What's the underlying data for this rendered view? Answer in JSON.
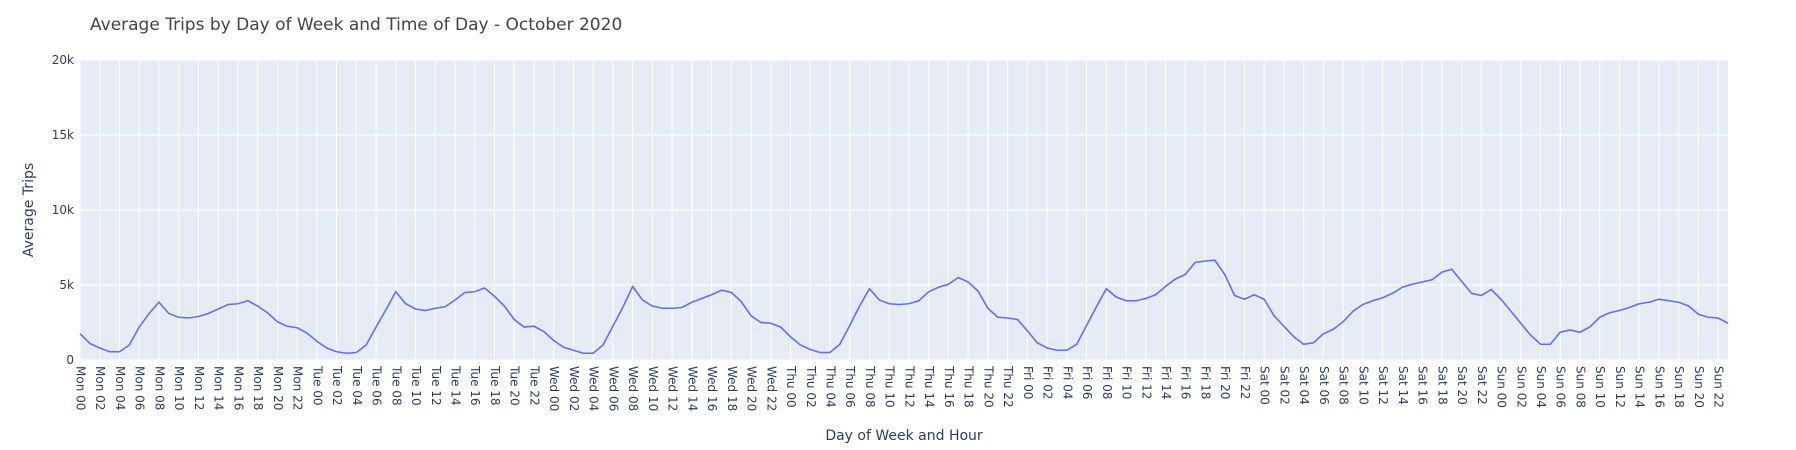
{
  "chart_data": {
    "type": "line",
    "title": "Average Trips by Day of Week and Time of Day - October 2020",
    "xlabel": "Day of Week and Hour",
    "ylabel": "Average Trips",
    "ylim": [
      0,
      20000
    ],
    "yticks": [
      0,
      5000,
      10000,
      15000,
      20000
    ],
    "yticklabels": [
      "0",
      "5k",
      "10k",
      "15k",
      "20k"
    ],
    "grid": true,
    "colors": {
      "line": "#636efa",
      "plot_bg": "#e5ecf6",
      "grid": "#ffffff",
      "text": "#2a3f5f"
    },
    "x": [
      "Mon 00",
      "Mon 01",
      "Mon 02",
      "Mon 03",
      "Mon 04",
      "Mon 05",
      "Mon 06",
      "Mon 07",
      "Mon 08",
      "Mon 09",
      "Mon 10",
      "Mon 11",
      "Mon 12",
      "Mon 13",
      "Mon 14",
      "Mon 15",
      "Mon 16",
      "Mon 17",
      "Mon 18",
      "Mon 19",
      "Mon 20",
      "Mon 21",
      "Mon 22",
      "Mon 23",
      "Tue 00",
      "Tue 01",
      "Tue 02",
      "Tue 03",
      "Tue 04",
      "Tue 05",
      "Tue 06",
      "Tue 07",
      "Tue 08",
      "Tue 09",
      "Tue 10",
      "Tue 11",
      "Tue 12",
      "Tue 13",
      "Tue 14",
      "Tue 15",
      "Tue 16",
      "Tue 17",
      "Tue 18",
      "Tue 19",
      "Tue 20",
      "Tue 21",
      "Tue 22",
      "Tue 23",
      "Wed 00",
      "Wed 01",
      "Wed 02",
      "Wed 03",
      "Wed 04",
      "Wed 05",
      "Wed 06",
      "Wed 07",
      "Wed 08",
      "Wed 09",
      "Wed 10",
      "Wed 11",
      "Wed 12",
      "Wed 13",
      "Wed 14",
      "Wed 15",
      "Wed 16",
      "Wed 17",
      "Wed 18",
      "Wed 19",
      "Wed 20",
      "Wed 21",
      "Wed 22",
      "Wed 23",
      "Thu 00",
      "Thu 01",
      "Thu 02",
      "Thu 03",
      "Thu 04",
      "Thu 05",
      "Thu 06",
      "Thu 07",
      "Thu 08",
      "Thu 09",
      "Thu 10",
      "Thu 11",
      "Thu 12",
      "Thu 13",
      "Thu 14",
      "Thu 15",
      "Thu 16",
      "Thu 17",
      "Thu 18",
      "Thu 19",
      "Thu 20",
      "Thu 21",
      "Thu 22",
      "Thu 23",
      "Fri 00",
      "Fri 01",
      "Fri 02",
      "Fri 03",
      "Fri 04",
      "Fri 05",
      "Fri 06",
      "Fri 07",
      "Fri 08",
      "Fri 09",
      "Fri 10",
      "Fri 11",
      "Fri 12",
      "Fri 13",
      "Fri 14",
      "Fri 15",
      "Fri 16",
      "Fri 17",
      "Fri 18",
      "Fri 19",
      "Fri 20",
      "Fri 21",
      "Fri 22",
      "Fri 23",
      "Sat 00",
      "Sat 01",
      "Sat 02",
      "Sat 03",
      "Sat 04",
      "Sat 05",
      "Sat 06",
      "Sat 07",
      "Sat 08",
      "Sat 09",
      "Sat 10",
      "Sat 11",
      "Sat 12",
      "Sat 13",
      "Sat 14",
      "Sat 15",
      "Sat 16",
      "Sat 17",
      "Sat 18",
      "Sat 19",
      "Sat 20",
      "Sat 21",
      "Sat 22",
      "Sat 23",
      "Sun 00",
      "Sun 01",
      "Sun 02",
      "Sun 03",
      "Sun 04",
      "Sun 05",
      "Sun 06",
      "Sun 07",
      "Sun 08",
      "Sun 09",
      "Sun 10",
      "Sun 11",
      "Sun 12",
      "Sun 13",
      "Sun 14",
      "Sun 15",
      "Sun 16",
      "Sun 17",
      "Sun 18",
      "Sun 19",
      "Sun 20",
      "Sun 21",
      "Sun 22",
      "Sun 23"
    ],
    "xtick_every": 2,
    "series": [
      {
        "values": [
          1750,
          1100,
          800,
          550,
          550,
          1000,
          2200,
          3100,
          3850,
          3100,
          2850,
          2800,
          2900,
          3100,
          3400,
          3700,
          3750,
          3950,
          3600,
          3150,
          2550,
          2250,
          2150,
          1800,
          1250,
          800,
          550,
          450,
          500,
          1000,
          2200,
          3350,
          4550,
          3750,
          3400,
          3300,
          3450,
          3550,
          4000,
          4500,
          4550,
          4800,
          4250,
          3600,
          2700,
          2200,
          2250,
          1900,
          1300,
          850,
          650,
          450,
          450,
          1000,
          2250,
          3500,
          4900,
          4000,
          3600,
          3450,
          3450,
          3500,
          3850,
          4100,
          4350,
          4650,
          4500,
          3900,
          2950,
          2500,
          2450,
          2200,
          1550,
          1000,
          700,
          500,
          500,
          1050,
          2300,
          3600,
          4750,
          4000,
          3750,
          3700,
          3750,
          3950,
          4550,
          4850,
          5050,
          5500,
          5200,
          4600,
          3450,
          2850,
          2800,
          2700,
          1950,
          1150,
          800,
          650,
          650,
          1050,
          2300,
          3550,
          4750,
          4200,
          3950,
          3950,
          4100,
          4350,
          4900,
          5400,
          5700,
          6500,
          6600,
          6650,
          5700,
          4300,
          4050,
          4350,
          4050,
          2950,
          2250,
          1550,
          1050,
          1150,
          1750,
          2050,
          2550,
          3250,
          3700,
          3950,
          4150,
          4450,
          4850,
          5050,
          5200,
          5350,
          5850,
          6050,
          5250,
          4450,
          4300,
          4700,
          4050,
          3250,
          2450,
          1650,
          1050,
          1050,
          1850,
          2000,
          1850,
          2200,
          2850,
          3150,
          3300,
          3500,
          3750,
          3850,
          4050,
          3950,
          3850,
          3600,
          3050,
          2850,
          2800,
          2450
        ]
      }
    ]
  }
}
